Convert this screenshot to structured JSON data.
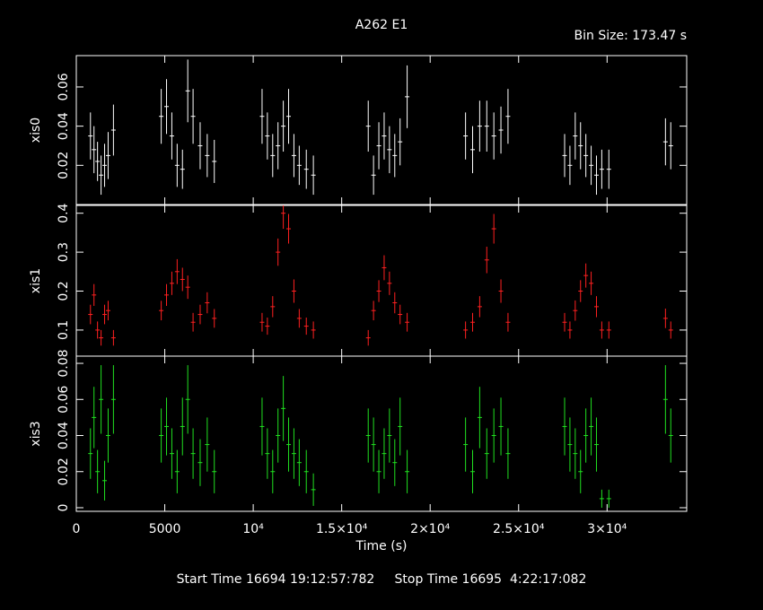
{
  "title": "A262 E1",
  "subtitle": "Bin Size: 173.47 s",
  "x_label": "Time (s)",
  "footer": "Start Time 16694 19:12:57:782     Stop Time 16695  4:22:17:082",
  "chart_data": [
    {
      "type": "errorbar",
      "xlim": [
        0,
        34500
      ],
      "ylim": [
        0,
        0.076
      ],
      "yticks": [
        0.02,
        0.04,
        0.06
      ],
      "x": [
        800,
        1000,
        1200,
        1400,
        1600,
        1800,
        2100,
        4800,
        5100,
        5400,
        5700,
        6000,
        6300,
        6600,
        7000,
        7400,
        7800,
        10500,
        10800,
        11100,
        11400,
        11700,
        12000,
        12300,
        12600,
        13000,
        13400,
        16500,
        16800,
        17100,
        17400,
        17700,
        18000,
        18300,
        18700,
        22000,
        22400,
        22800,
        23200,
        23600,
        24000,
        24400,
        27600,
        27900,
        28200,
        28500,
        28800,
        29100,
        29400,
        29700,
        30100,
        33300,
        33600
      ],
      "series": [
        {
          "name": "xis0",
          "color": "#ffffff",
          "values": [
            0.035,
            0.028,
            0.022,
            0.015,
            0.02,
            0.025,
            0.038,
            0.045,
            0.05,
            0.035,
            0.02,
            0.018,
            0.058,
            0.045,
            0.03,
            0.025,
            0.022,
            0.045,
            0.035,
            0.025,
            0.03,
            0.04,
            0.045,
            0.025,
            0.02,
            0.018,
            0.015,
            0.04,
            0.015,
            0.03,
            0.035,
            0.028,
            0.025,
            0.032,
            0.055,
            0.035,
            0.028,
            0.04,
            0.04,
            0.035,
            0.038,
            0.045,
            0.025,
            0.02,
            0.035,
            0.03,
            0.025,
            0.02,
            0.015,
            0.018,
            0.018,
            0.032,
            0.03
          ],
          "errors": [
            0.012,
            0.012,
            0.01,
            0.01,
            0.011,
            0.012,
            0.013,
            0.014,
            0.014,
            0.012,
            0.011,
            0.01,
            0.016,
            0.014,
            0.012,
            0.011,
            0.011,
            0.014,
            0.012,
            0.011,
            0.012,
            0.013,
            0.014,
            0.011,
            0.01,
            0.01,
            0.01,
            0.013,
            0.01,
            0.012,
            0.012,
            0.012,
            0.011,
            0.012,
            0.016,
            0.012,
            0.012,
            0.013,
            0.013,
            0.012,
            0.012,
            0.014,
            0.011,
            0.01,
            0.012,
            0.012,
            0.011,
            0.01,
            0.01,
            0.01,
            0.01,
            0.012,
            0.012
          ]
        }
      ]
    },
    {
      "type": "errorbar",
      "xlim": [
        0,
        34500
      ],
      "ylim": [
        0.033,
        0.42
      ],
      "yticks": [
        0.1,
        0.2,
        0.3,
        0.4
      ],
      "x": [
        800,
        1000,
        1200,
        1400,
        1600,
        1800,
        2100,
        4800,
        5100,
        5400,
        5700,
        6000,
        6300,
        6600,
        7000,
        7400,
        7800,
        10500,
        10800,
        11100,
        11400,
        11700,
        12000,
        12300,
        12600,
        13000,
        13400,
        16500,
        16800,
        17100,
        17400,
        17700,
        18000,
        18300,
        18700,
        22000,
        22400,
        22800,
        23200,
        23600,
        24000,
        24400,
        27600,
        27900,
        28200,
        28500,
        28800,
        29100,
        29400,
        29700,
        30100,
        33300,
        33600
      ],
      "series": [
        {
          "name": "xis1",
          "color": "#ff2020",
          "values": [
            0.14,
            0.19,
            0.1,
            0.08,
            0.14,
            0.15,
            0.08,
            0.15,
            0.19,
            0.22,
            0.25,
            0.23,
            0.21,
            0.12,
            0.14,
            0.17,
            0.13,
            0.12,
            0.11,
            0.16,
            0.3,
            0.4,
            0.36,
            0.2,
            0.13,
            0.11,
            0.1,
            0.08,
            0.15,
            0.2,
            0.26,
            0.22,
            0.17,
            0.14,
            0.12,
            0.1,
            0.12,
            0.16,
            0.28,
            0.36,
            0.2,
            0.12,
            0.12,
            0.1,
            0.15,
            0.2,
            0.24,
            0.22,
            0.16,
            0.1,
            0.1,
            0.13,
            0.1
          ],
          "errors": [
            0.025,
            0.028,
            0.022,
            0.02,
            0.025,
            0.025,
            0.02,
            0.025,
            0.028,
            0.03,
            0.032,
            0.03,
            0.03,
            0.024,
            0.025,
            0.027,
            0.024,
            0.024,
            0.022,
            0.027,
            0.035,
            0.04,
            0.038,
            0.03,
            0.024,
            0.022,
            0.022,
            0.02,
            0.025,
            0.028,
            0.032,
            0.03,
            0.027,
            0.025,
            0.024,
            0.022,
            0.024,
            0.027,
            0.034,
            0.038,
            0.03,
            0.024,
            0.024,
            0.022,
            0.026,
            0.028,
            0.031,
            0.03,
            0.027,
            0.022,
            0.022,
            0.025,
            0.022
          ]
        }
      ]
    },
    {
      "type": "errorbar",
      "xlim": [
        0,
        34500
      ],
      "ylim": [
        -0.002,
        0.084
      ],
      "yticks": [
        0,
        0.02,
        0.04,
        0.06,
        0.08
      ],
      "xticks": [
        0,
        5000,
        {
          "value": 10000,
          "label": "10⁴"
        },
        {
          "value": 15000,
          "label": "1.5×10⁴"
        },
        {
          "value": 20000,
          "label": "2×10⁴"
        },
        {
          "value": 25000,
          "label": "2.5×10⁴"
        },
        {
          "value": 30000,
          "label": "3×10⁴"
        }
      ],
      "x": [
        800,
        1000,
        1200,
        1400,
        1600,
        1800,
        2100,
        4800,
        5100,
        5400,
        5700,
        6000,
        6300,
        6600,
        7000,
        7400,
        7800,
        10500,
        10800,
        11100,
        11400,
        11700,
        12000,
        12300,
        12600,
        13000,
        13400,
        16500,
        16800,
        17100,
        17400,
        17700,
        18000,
        18300,
        18700,
        22000,
        22400,
        22800,
        23200,
        23600,
        24000,
        24400,
        27600,
        27900,
        28200,
        28500,
        28800,
        29100,
        29400,
        29700,
        30100,
        33300,
        33600
      ],
      "series": [
        {
          "name": "xis3",
          "color": "#20e020",
          "values": [
            0.03,
            0.05,
            0.02,
            0.06,
            0.015,
            0.04,
            0.06,
            0.04,
            0.045,
            0.03,
            0.02,
            0.045,
            0.06,
            0.03,
            0.025,
            0.035,
            0.02,
            0.045,
            0.03,
            0.02,
            0.04,
            0.055,
            0.035,
            0.03,
            0.025,
            0.02,
            0.01,
            0.04,
            0.035,
            0.02,
            0.03,
            0.04,
            0.025,
            0.045,
            0.02,
            0.035,
            0.02,
            0.05,
            0.03,
            0.04,
            0.045,
            0.03,
            0.045,
            0.035,
            0.03,
            0.02,
            0.04,
            0.045,
            0.035,
            0.005,
            0.005,
            0.06,
            0.04
          ],
          "errors": [
            0.014,
            0.017,
            0.012,
            0.019,
            0.011,
            0.015,
            0.019,
            0.015,
            0.016,
            0.014,
            0.012,
            0.016,
            0.019,
            0.014,
            0.013,
            0.015,
            0.012,
            0.016,
            0.014,
            0.012,
            0.015,
            0.018,
            0.015,
            0.014,
            0.013,
            0.012,
            0.009,
            0.015,
            0.015,
            0.012,
            0.014,
            0.015,
            0.013,
            0.016,
            0.012,
            0.015,
            0.012,
            0.017,
            0.014,
            0.015,
            0.016,
            0.014,
            0.016,
            0.015,
            0.014,
            0.012,
            0.015,
            0.016,
            0.015,
            0.005,
            0.005,
            0.019,
            0.015
          ]
        }
      ]
    }
  ]
}
